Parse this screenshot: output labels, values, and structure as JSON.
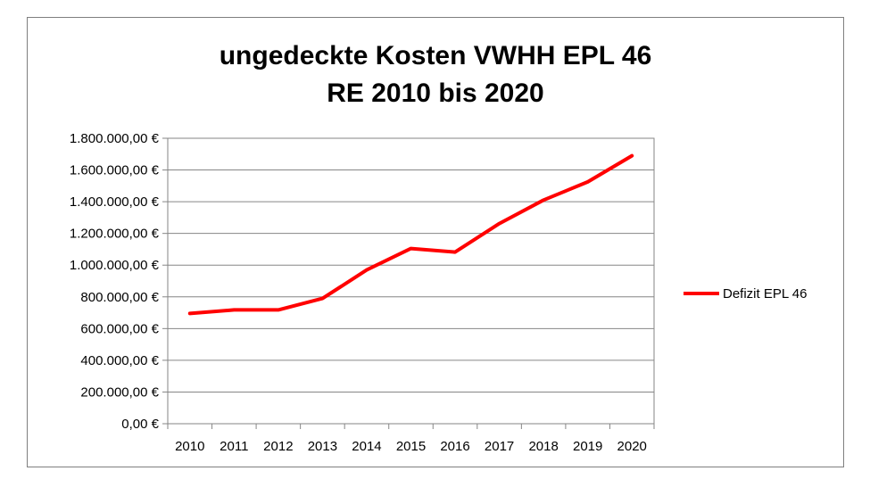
{
  "chart_data": {
    "type": "line",
    "title_lines": [
      "ungedeckte Kosten VWHH EPL 46",
      "RE 2010 bis 2020"
    ],
    "categories": [
      "2010",
      "2011",
      "2012",
      "2013",
      "2014",
      "2015",
      "2016",
      "2017",
      "2018",
      "2019",
      "2020"
    ],
    "series": [
      {
        "name": "Defizit EPL 46",
        "color": "#ff0000",
        "values": [
          695000,
          718000,
          718000,
          790000,
          970000,
          1105000,
          1082000,
          1262000,
          1410000,
          1525000,
          1690000
        ]
      }
    ],
    "ylim": [
      0,
      1800000
    ],
    "yticks": [
      0,
      200000,
      400000,
      600000,
      800000,
      1000000,
      1200000,
      1400000,
      1600000,
      1800000
    ],
    "ytick_labels": [
      "0,00 €",
      "200.000,00 €",
      "400.000,00 €",
      "600.000,00 €",
      "800.000,00 €",
      "1.000.000,00 €",
      "1.200.000,00 €",
      "1.400.000,00 €",
      "1.600.000,00 €",
      "1.800.000,00 €"
    ],
    "grid": true,
    "legend_position": "right"
  }
}
